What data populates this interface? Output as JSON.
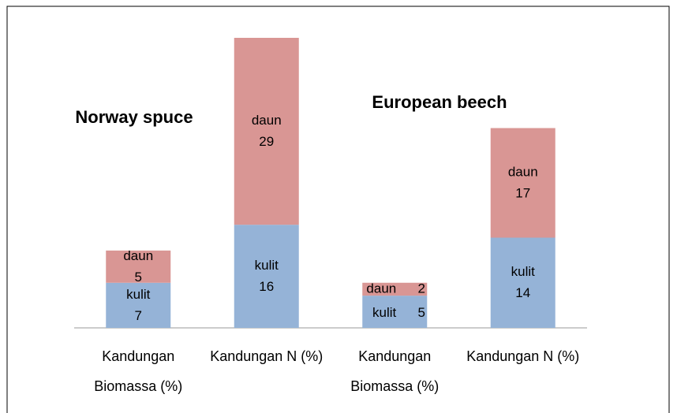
{
  "chart_data": {
    "type": "stacked_bar",
    "categories": [
      "Kandungan Biomassa (%)",
      "Kandungan N (%)",
      "Kandungan Biomassa (%)",
      "Kandungan N (%)"
    ],
    "series": [
      {
        "name": "kulit",
        "color": "#95b3d7",
        "values": [
          7,
          16,
          5,
          14
        ]
      },
      {
        "name": "daun",
        "color": "#d99694",
        "values": [
          5,
          29,
          2,
          17
        ]
      }
    ],
    "annotations": [
      "Norway spuce",
      "European beech"
    ]
  }
}
